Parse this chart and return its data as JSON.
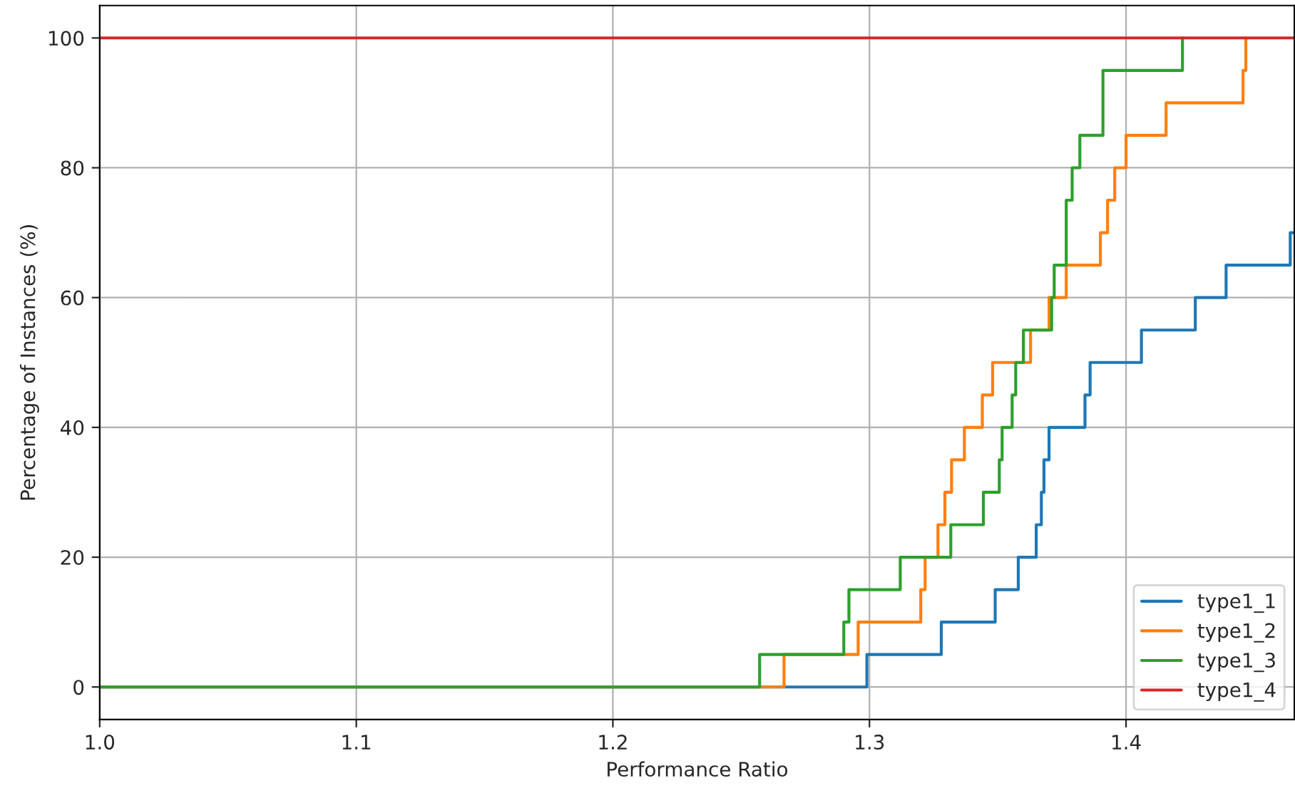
{
  "chart_data": {
    "type": "step",
    "xlabel": "Performance Ratio",
    "ylabel": "Percentage of Instances (%)",
    "xlim": [
      1.0,
      1.4656
    ],
    "ylim": [
      -5,
      105
    ],
    "xticks": [
      {
        "value": 1.0,
        "label": "1.0"
      },
      1.1,
      1.2,
      1.3,
      1.4
    ],
    "yticks": [
      0,
      20,
      40,
      60,
      80,
      100
    ],
    "grid": true,
    "legend": "bottom right",
    "marker": "none",
    "line_style": "solid",
    "series": [
      {
        "name": "type1_1",
        "color": "#1f77b4",
        "x": [
          1.0,
          1.299,
          1.328,
          1.349,
          1.358,
          1.365,
          1.367,
          1.368,
          1.37,
          1.384,
          1.386,
          1.406,
          1.427,
          1.439,
          1.464,
          1.4656
        ],
        "values": [
          0,
          5,
          10,
          15,
          20,
          25,
          30,
          35,
          40,
          45,
          50,
          55,
          60,
          65,
          70,
          70
        ]
      },
      {
        "name": "type1_2",
        "color": "#ff7f0e",
        "x": [
          1.0,
          1.2667,
          1.2956,
          1.32,
          1.3217,
          1.3267,
          1.3294,
          1.332,
          1.337,
          1.344,
          1.348,
          1.3628,
          1.37,
          1.3767,
          1.39,
          1.3928,
          1.3956,
          1.4,
          1.4156,
          1.4456,
          1.4467
        ],
        "values": [
          0,
          5,
          10,
          15,
          20,
          25,
          30,
          35,
          40,
          45,
          50,
          55,
          60,
          65,
          70,
          75,
          80,
          85,
          90,
          95,
          100
        ]
      },
      {
        "name": "type1_3",
        "color": "#2ca02c",
        "x": [
          1.0,
          1.2572,
          1.29,
          1.292,
          1.312,
          1.3317,
          1.3444,
          1.3506,
          1.3517,
          1.3556,
          1.357,
          1.36,
          1.371,
          1.372,
          1.3767,
          1.379,
          1.382,
          1.391,
          1.422
        ],
        "values": [
          0,
          5,
          10,
          15,
          20,
          25,
          30,
          35,
          40,
          45,
          50,
          55,
          60,
          65,
          75,
          80,
          85,
          95,
          100
        ]
      },
      {
        "name": "type1_4",
        "color": "#d62728",
        "x": [
          1.0,
          1.4656
        ],
        "values": [
          100,
          100
        ]
      }
    ]
  }
}
